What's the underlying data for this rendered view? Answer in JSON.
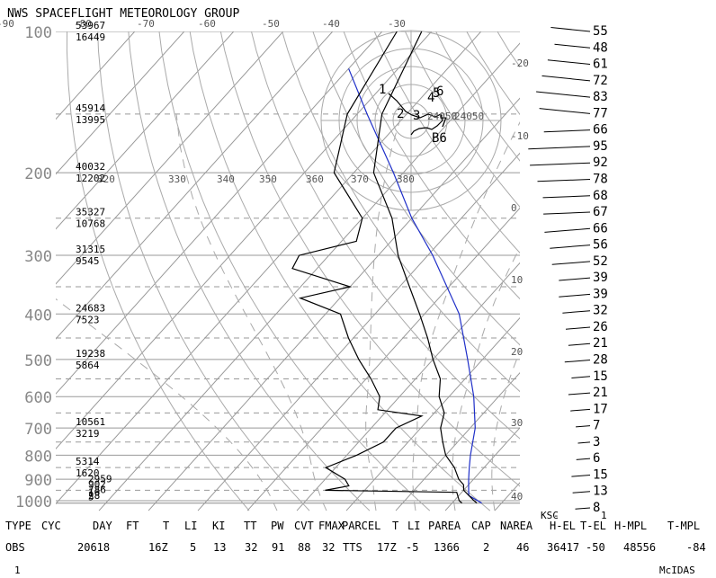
{
  "title": "NWS SPACEFLIGHT METEOROLOGY GROUP",
  "chart_data": {
    "type": "skew-t",
    "pressure_ticks": [
      "100",
      "200",
      "300",
      "400",
      "500",
      "600",
      "700",
      "800",
      "900",
      "1000"
    ],
    "temperature_ticks": [
      "-90",
      "-80",
      "-70",
      "-60",
      "-50",
      "-40",
      "-30"
    ],
    "theta_labels": [
      "320",
      "330",
      "340",
      "350",
      "360",
      "370",
      "380"
    ],
    "mixing_ratio_labels": [
      "-20",
      "-10",
      "0",
      "10",
      "20",
      "30",
      "40"
    ],
    "heights": [
      {
        "p": 100,
        "m": "53967",
        "ft": "16449"
      },
      {
        "p": 150,
        "m": "45914",
        "ft": "13995"
      },
      {
        "p": 200,
        "m": "40032",
        "ft": "12202"
      },
      {
        "p": 250,
        "m": "35327",
        "ft": "10768"
      },
      {
        "p": 300,
        "m": "31315",
        "ft": "9545"
      },
      {
        "p": 400,
        "m": "24683",
        "ft": "7523"
      },
      {
        "p": 500,
        "m": "19238",
        "ft": "5864"
      },
      {
        "p": 700,
        "m": "10561",
        "ft": "3219"
      },
      {
        "p": 850,
        "m": "5314",
        "ft": "1620"
      },
      {
        "p": 925,
        "m": "",
        "ft": "2959"
      },
      {
        "p": 950,
        "m": "",
        "ft": "902"
      },
      {
        "p": 975,
        "m": "",
        "ft": "786"
      },
      {
        "p": 990,
        "m": "",
        "ft": "16"
      },
      {
        "p": 1005,
        "m": "",
        "ft": "28"
      },
      {
        "p": 1015,
        "m": "",
        "ft": "5"
      }
    ],
    "temperature": [
      {
        "p": 1012,
        "t": 25
      },
      {
        "p": 1000,
        "t": 24
      },
      {
        "p": 950,
        "t": 20
      },
      {
        "p": 925,
        "t": 19
      },
      {
        "p": 900,
        "t": 17
      },
      {
        "p": 850,
        "t": 14
      },
      {
        "p": 800,
        "t": 10
      },
      {
        "p": 750,
        "t": 7
      },
      {
        "p": 700,
        "t": 4
      },
      {
        "p": 650,
        "t": 2
      },
      {
        "p": 600,
        "t": -2
      },
      {
        "p": 550,
        "t": -5
      },
      {
        "p": 500,
        "t": -10
      },
      {
        "p": 450,
        "t": -15
      },
      {
        "p": 400,
        "t": -21
      },
      {
        "p": 350,
        "t": -28
      },
      {
        "p": 300,
        "t": -36
      },
      {
        "p": 250,
        "t": -44
      },
      {
        "p": 200,
        "t": -56
      },
      {
        "p": 150,
        "t": -65
      },
      {
        "p": 100,
        "t": -72
      }
    ],
    "dewpoint": [
      {
        "p": 1012,
        "t": 22
      },
      {
        "p": 1000,
        "t": 21
      },
      {
        "p": 960,
        "t": 19
      },
      {
        "p": 950,
        "t": -8
      },
      {
        "p": 930,
        "t": -4
      },
      {
        "p": 900,
        "t": -6
      },
      {
        "p": 850,
        "t": -12
      },
      {
        "p": 800,
        "t": -8
      },
      {
        "p": 750,
        "t": -5
      },
      {
        "p": 700,
        "t": -5
      },
      {
        "p": 660,
        "t": -2
      },
      {
        "p": 640,
        "t": -12
      },
      {
        "p": 600,
        "t": -14
      },
      {
        "p": 550,
        "t": -19
      },
      {
        "p": 500,
        "t": -25
      },
      {
        "p": 450,
        "t": -31
      },
      {
        "p": 400,
        "t": -37
      },
      {
        "p": 370,
        "t": -48
      },
      {
        "p": 350,
        "t": -40
      },
      {
        "p": 320,
        "t": -55
      },
      {
        "p": 300,
        "t": -56
      },
      {
        "p": 280,
        "t": -47
      },
      {
        "p": 250,
        "t": -50
      },
      {
        "p": 200,
        "t": -64
      },
      {
        "p": 150,
        "t": -72
      },
      {
        "p": 100,
        "t": -77
      }
    ],
    "parcel": [
      {
        "p": 1012,
        "t": 26
      },
      {
        "p": 975,
        "t": 22
      },
      {
        "p": 950,
        "t": 21
      },
      {
        "p": 900,
        "t": 19
      },
      {
        "p": 850,
        "t": 17
      },
      {
        "p": 800,
        "t": 15
      },
      {
        "p": 700,
        "t": 11
      },
      {
        "p": 600,
        "t": 5
      },
      {
        "p": 500,
        "t": -3
      },
      {
        "p": 400,
        "t": -13
      },
      {
        "p": 300,
        "t": -29
      },
      {
        "p": 250,
        "t": -40
      },
      {
        "p": 200,
        "t": -52
      },
      {
        "p": 150,
        "t": -68
      },
      {
        "p": 120,
        "t": -80
      }
    ],
    "wind_labels": [
      "55",
      "48",
      "61",
      "72",
      "83",
      "77",
      "66",
      "95",
      "92",
      "78",
      "68",
      "67",
      "66",
      "56",
      "52",
      "39",
      "39",
      "32",
      "26",
      "21",
      "28",
      "15",
      "21",
      "17",
      "7",
      "3",
      "6",
      "15",
      "13",
      "8"
    ],
    "hodograph": {
      "numbers": [
        "1",
        "2",
        "3",
        "4",
        "5",
        "6",
        "7",
        "B6"
      ],
      "x_labels": [
        "-40",
        "-30"
      ],
      "y_labels": [
        "-20",
        "-10"
      ],
      "ring_labels": [
        "24050",
        "24050"
      ]
    },
    "footer_headers": [
      "TYPE",
      "CYC",
      "DAY",
      "FT",
      "T",
      "LI",
      "KI",
      "TT",
      "PW",
      "CVT",
      "FMAX",
      "PARCEL",
      "T",
      "LI",
      "PAREA",
      "CAP",
      "NAREA",
      "H-EL",
      "T-EL",
      "H-MPL",
      "T-MPL"
    ],
    "footer_values": [
      "OBS",
      "",
      "20618",
      "",
      "16Z",
      "5",
      "13",
      "32",
      "91",
      "88",
      "32",
      "TTS",
      "17Z",
      "-5",
      "1366",
      "2",
      "46",
      "36417",
      "-50",
      "48556",
      "-84"
    ],
    "station": "KSC",
    "ksc_small_labels": [
      "-",
      "1"
    ],
    "page_number": "1",
    "brand": "McIDAS"
  }
}
